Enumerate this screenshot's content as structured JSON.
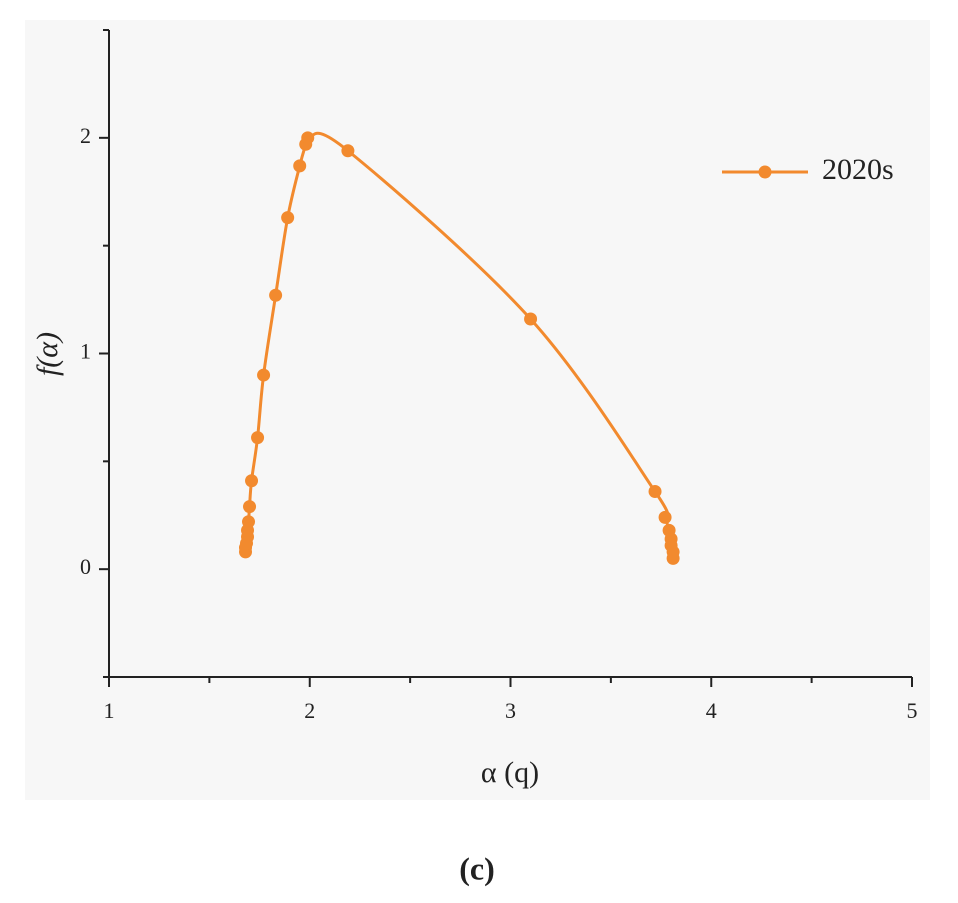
{
  "chart_data": {
    "type": "line",
    "x_label": "α (q)",
    "y_label": "f(α)",
    "x": [
      1.68,
      1.68,
      1.685,
      1.69,
      1.69,
      1.695,
      1.7,
      1.71,
      1.74,
      1.77,
      1.83,
      1.89,
      1.95,
      1.98,
      1.99,
      2.19,
      3.1,
      3.72,
      3.77,
      3.79,
      3.8,
      3.8,
      3.81,
      3.81
    ],
    "series": [
      {
        "name": "2020s",
        "color": "#f28a2e",
        "values": [
          0.08,
          0.1,
          0.12,
          0.15,
          0.18,
          0.22,
          0.29,
          0.41,
          0.61,
          0.9,
          1.27,
          1.63,
          1.87,
          1.97,
          2.0,
          1.94,
          1.16,
          0.36,
          0.24,
          0.18,
          0.14,
          0.11,
          0.08,
          0.05
        ]
      }
    ],
    "xlim": [
      1,
      5
    ],
    "xticks": [
      1,
      2,
      3,
      4,
      5
    ],
    "xminorticks": [
      1.5,
      2.5,
      3.5,
      4.5
    ],
    "ylim": [
      -0.5,
      2.5
    ],
    "yticks": [
      0,
      1,
      2
    ],
    "yminorticks": [
      -0.5,
      0.5,
      1.5,
      2.5
    ],
    "grid": false,
    "legend": "upper right"
  },
  "caption": "(c)"
}
